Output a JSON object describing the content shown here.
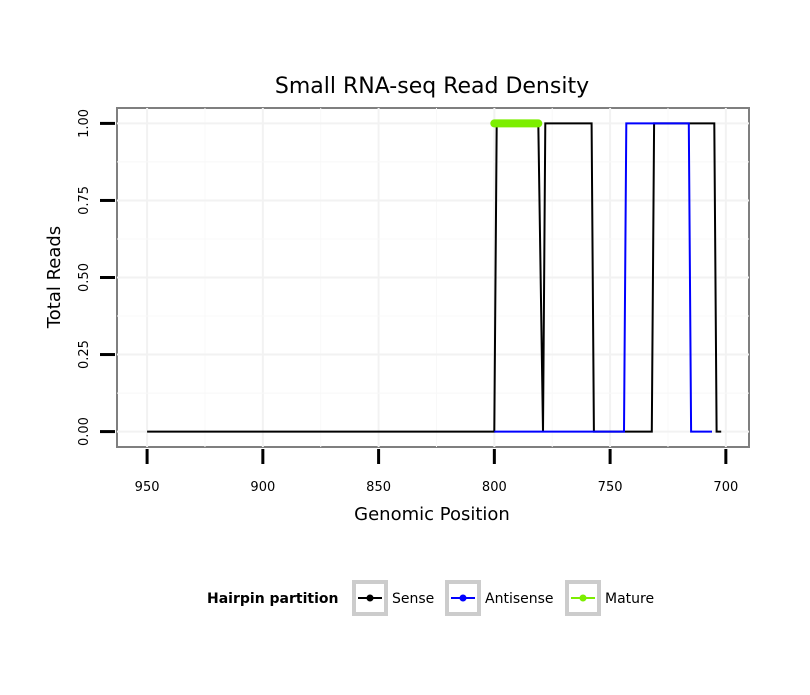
{
  "chart_data": {
    "type": "line",
    "title": "Small RNA-seq Read Density",
    "xlabel": "Genomic Position",
    "ylabel": "Total Reads",
    "xlim": [
      963,
      690
    ],
    "x_reversed": true,
    "ylim": [
      -0.05,
      1.05
    ],
    "x_ticks": [
      950,
      900,
      850,
      800,
      750,
      700
    ],
    "x_tick_labels": [
      "950",
      "900",
      "850",
      "800",
      "750",
      "700"
    ],
    "y_ticks": [
      0,
      0.25,
      0.5,
      0.75,
      1.0
    ],
    "y_tick_labels": [
      "0.00",
      "0.25",
      "0.50",
      "0.75",
      "1.00"
    ],
    "grid": true,
    "legend_position": "bottom",
    "legend_title": "Hairpin partition",
    "series": [
      {
        "name": "Sense",
        "color": "#000000",
        "x": [
          950,
          800,
          799,
          781,
          779,
          778,
          758,
          757,
          732,
          731,
          716,
          715,
          705,
          704,
          702
        ],
        "y": [
          0,
          0,
          1,
          1,
          0,
          1,
          1,
          0,
          0,
          1,
          1,
          1,
          1,
          0,
          0
        ]
      },
      {
        "name": "Antisense",
        "color": "#0000ff",
        "x": [
          800,
          758,
          744,
          743,
          716,
          715,
          706
        ],
        "y": [
          0,
          0,
          0,
          1,
          1,
          0,
          0
        ]
      },
      {
        "name": "Mature",
        "color": "#7cee00",
        "x": [
          800,
          781
        ],
        "y": [
          1,
          1
        ]
      }
    ]
  }
}
